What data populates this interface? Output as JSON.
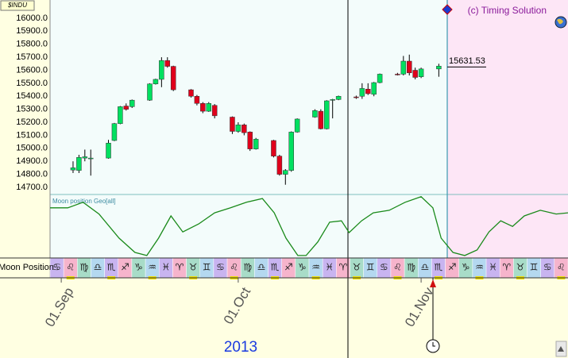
{
  "chart_data": {
    "type": "candlestick",
    "symbol": "$INDU",
    "copyright": "(c) Timing Solution",
    "year_label": "2013",
    "ylim": [
      14645,
      16140
    ],
    "yticks": [
      {
        "value": 14700,
        "label": "14700.0"
      },
      {
        "value": 14800,
        "label": "14800.0"
      },
      {
        "value": 14900,
        "label": "14900.0"
      },
      {
        "value": 15000,
        "label": "15000.0"
      },
      {
        "value": 15100,
        "label": "15100.0"
      },
      {
        "value": 15200,
        "label": "15200.0"
      },
      {
        "value": 15300,
        "label": "15300.0"
      },
      {
        "value": 15400,
        "label": "15400.0"
      },
      {
        "value": 15500,
        "label": "15500.0"
      },
      {
        "value": 15600,
        "label": "15600.0"
      },
      {
        "value": 15700,
        "label": "15700.0"
      },
      {
        "value": 15800,
        "label": "15800.0"
      },
      {
        "value": 15900,
        "label": "15900.0"
      },
      {
        "value": 16000,
        "label": "16000.0"
      }
    ],
    "xlim": [
      -1.9,
      85.9
    ],
    "xticks": [
      {
        "value": 0,
        "label": "01.Sep"
      },
      {
        "value": 30,
        "label": "01.Oct"
      },
      {
        "value": 61,
        "label": "01.Nov"
      }
    ],
    "up_color": "#00e060",
    "down_color": "#e0001c",
    "candles": {
      "x": [
        2,
        3,
        4,
        5,
        8,
        9,
        10,
        11,
        12,
        15,
        16,
        17,
        18,
        19,
        22,
        23,
        24,
        25,
        26,
        29,
        30,
        31,
        32,
        33,
        36,
        37,
        38,
        39,
        40,
        43,
        44,
        45,
        46,
        47,
        50,
        51,
        52,
        53,
        54,
        57,
        58,
        59,
        60,
        61,
        64
      ],
      "open": [
        14833,
        14830,
        14925,
        14920,
        14925,
        15060,
        15190,
        15325,
        15320,
        15370,
        15495,
        15530,
        15675,
        15630,
        15450,
        15400,
        15345,
        15285,
        15330,
        15240,
        15130,
        15180,
        15125,
        14995,
        15060,
        14940,
        14800,
        14830,
        15125,
        15240,
        15285,
        15150,
        15370,
        15375,
        15395,
        15400,
        15455,
        15415,
        15505,
        15570,
        15570,
        15670,
        15600,
        15550,
        15610
      ],
      "high": [
        14900,
        14950,
        14990,
        14990,
        15065,
        15195,
        15325,
        15345,
        15375,
        15500,
        15535,
        15700,
        15700,
        15635,
        15455,
        15410,
        15355,
        15355,
        15340,
        15245,
        15200,
        15190,
        15130,
        15080,
        15065,
        14950,
        14840,
        15130,
        15230,
        15300,
        15300,
        15370,
        15380,
        15405,
        15405,
        15500,
        15500,
        15510,
        15575,
        15580,
        15710,
        15720,
        15620,
        15620,
        15650
      ],
      "low": [
        14810,
        14810,
        14900,
        14790,
        14920,
        15055,
        15185,
        15290,
        15310,
        15365,
        15490,
        15470,
        15620,
        15440,
        15390,
        15330,
        15270,
        15280,
        15230,
        15110,
        15120,
        15100,
        14980,
        14990,
        14930,
        14790,
        14720,
        14820,
        15120,
        15235,
        15145,
        15145,
        15230,
        15370,
        15380,
        15380,
        15410,
        15400,
        15500,
        15560,
        15560,
        15560,
        15530,
        15540,
        15550
      ],
      "close": [
        14850,
        14930,
        14935,
        14925,
        15040,
        15190,
        15320,
        15300,
        15370,
        15495,
        15530,
        15675,
        15630,
        15450,
        15400,
        15345,
        15285,
        15345,
        15250,
        15130,
        15180,
        15120,
        14995,
        15070,
        14940,
        14800,
        14830,
        15125,
        15225,
        15290,
        15150,
        15365,
        15375,
        15400,
        15390,
        15460,
        15420,
        15505,
        15570,
        15568,
        15670,
        15580,
        15545,
        15610,
        15631.53
      ]
    },
    "moon_line": {
      "name": "Moon position Geo[all]",
      "color": "#1a8a1a",
      "ylim": [
        0,
        1
      ],
      "x": [
        -1.9,
        1.1,
        3.7,
        6.4,
        9.8,
        12.5,
        14.5,
        16.5,
        18.6,
        20.6,
        23.3,
        26.0,
        28.7,
        31.4,
        34.1,
        36.1,
        38.1,
        40.1,
        41.5,
        43.5,
        45.5,
        47.5,
        48.8,
        50.9,
        52.9,
        55.6,
        58.3,
        61.0,
        63.0,
        64.4,
        66.4,
        68.4,
        70.5,
        72.5,
        74.5,
        76.5,
        78.5,
        81.2,
        83.9,
        85.9
      ],
      "values": [
        0.81,
        0.81,
        0.9,
        0.71,
        0.32,
        0.09,
        0.04,
        0.32,
        0.68,
        0.42,
        0.55,
        0.73,
        0.81,
        0.9,
        0.96,
        0.73,
        0.32,
        0.04,
        0.04,
        0.26,
        0.58,
        0.6,
        0.41,
        0.6,
        0.73,
        0.77,
        0.9,
        0.99,
        0.81,
        0.32,
        0.09,
        0.04,
        0.13,
        0.42,
        0.6,
        0.51,
        0.68,
        0.77,
        0.71,
        0.73
      ]
    },
    "moon_strip": {
      "label": "Moon Position",
      "signs": [
        "♋",
        "♌",
        "♍",
        "♎",
        "♏",
        "♐",
        "♑",
        "♒",
        "♓",
        "♈",
        "♉",
        "♊",
        "♋",
        "♌",
        "♍",
        "♎",
        "♏",
        "♐",
        "♑",
        "♒",
        "♓",
        "♈",
        "♉",
        "♊",
        "♋",
        "♌",
        "♍",
        "♎",
        "♏",
        "♐",
        "♑",
        "♒",
        "♓",
        "♈",
        "♉",
        "♊",
        "♋",
        "♌"
      ]
    }
  }
}
